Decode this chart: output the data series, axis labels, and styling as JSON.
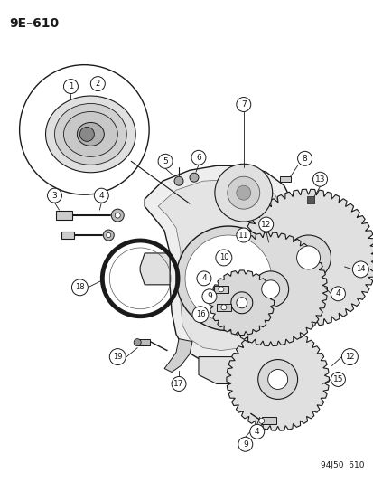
{
  "title": "9E–610",
  "footer": "94J50  610",
  "bg_color": "#ffffff",
  "dark": "#1a1a1a",
  "mid_gray": "#888888",
  "light_gray": "#cccccc",
  "title_fontsize": 10,
  "footer_fontsize": 6.5,
  "fig_width": 4.14,
  "fig_height": 5.33,
  "dpi": 100
}
